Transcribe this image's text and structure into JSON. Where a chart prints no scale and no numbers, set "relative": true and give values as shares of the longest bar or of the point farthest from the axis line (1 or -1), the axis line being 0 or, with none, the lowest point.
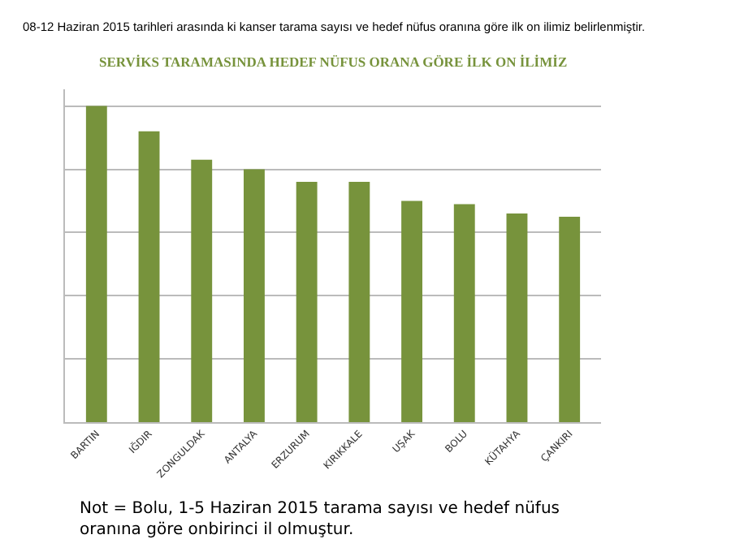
{
  "chart_data": {
    "type": "bar",
    "title": "08-12 Haziran 2015 tarihleri arasında ki kanser tarama sayısı ve hedef nüfus oranına göre ilk on ilimiz belirlenmiştir.",
    "subtitle": "SERVİKS TARAMASINDA HEDEF NÜFUS ORANA GÖRE İLK ON İLİMİZ",
    "categories": [
      "BARTIN",
      "IĞDIR",
      "ZONGULDAK",
      "ANTALYA",
      "ERZURUM",
      "KIRIKKALE",
      "UŞAK",
      "BOLU",
      "KÜTAHYA",
      "ÇANKIRI"
    ],
    "values": [
      1,
      0.92,
      0.83,
      0.8,
      0.76,
      0.76,
      0.7,
      0.69,
      0.66,
      0.65
    ],
    "color": "#77933c",
    "relative": true,
    "grid": "y",
    "annotations": [
      "Not = Bolu, 1-5 Haziran 2015 tarama sayısı ve hedef nüfus oranına göre onbirinci il olmuştur."
    ]
  }
}
